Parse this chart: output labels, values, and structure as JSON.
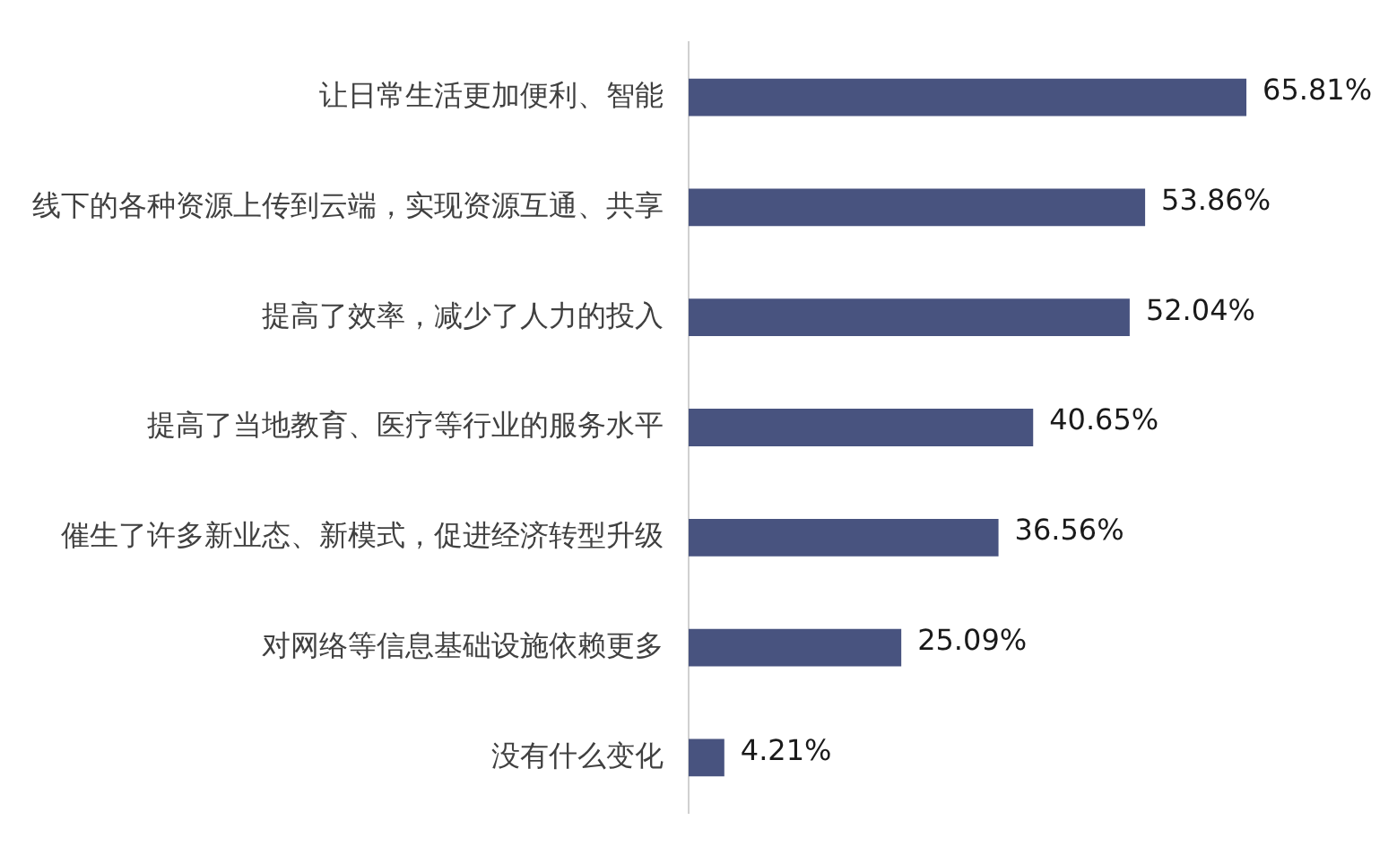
{
  "chart_data": {
    "type": "bar",
    "orientation": "horizontal",
    "categories": [
      "让日常生活更加便利、智能",
      "线下的各种资源上传到云端，实现资源互通、共享",
      "提高了效率，减少了人力的投入",
      "提高了当地教育、医疗等行业的服务水平",
      "催生了许多新业态、新模式，促进经济转型升级",
      "对网络等信息基础设施依赖更多",
      "没有什么变化"
    ],
    "values": [
      65.81,
      53.86,
      52.04,
      40.65,
      36.56,
      25.09,
      4.21
    ],
    "value_labels": [
      "65.81%",
      "53.86%",
      "52.04%",
      "40.65%",
      "36.56%",
      "25.09%",
      "4.21%"
    ],
    "color": "#48537f"
  }
}
